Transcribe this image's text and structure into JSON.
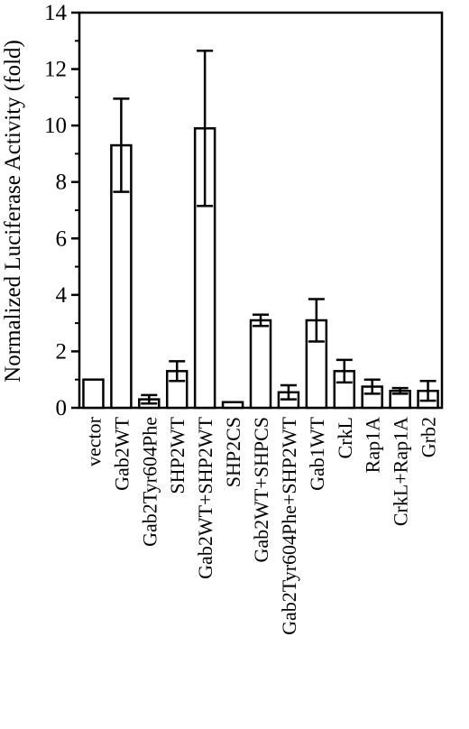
{
  "chart_data": {
    "type": "bar",
    "title": "",
    "xlabel": "",
    "ylabel": "Normalized Luciferase Activity (fold)",
    "ylim": [
      0,
      14
    ],
    "yticks": [
      0,
      2,
      4,
      6,
      8,
      10,
      12,
      14
    ],
    "grid": false,
    "categories": [
      "vector",
      "Gab2WT",
      "Gab2Tyr604Phe",
      "SHP2WT",
      "Gab2WT+SHP2WT",
      "SHP2CS",
      "Gab2WT+SHPCS",
      "Gab2Tyr604Phe+SHP2WT",
      "Gab1WT",
      "CrkL",
      "Rap1A",
      "CrkL+Rap1A",
      "Grb2"
    ],
    "values": [
      1.0,
      9.3,
      0.3,
      1.3,
      9.9,
      0.2,
      3.1,
      0.55,
      3.1,
      1.3,
      0.75,
      0.6,
      0.6
    ],
    "errors": [
      0,
      1.65,
      0.15,
      0.35,
      2.75,
      0,
      0.2,
      0.25,
      0.75,
      0.4,
      0.25,
      0.1,
      0.35
    ],
    "colors": {
      "bar_fill": "#ffffff",
      "stroke": "#000000"
    }
  }
}
